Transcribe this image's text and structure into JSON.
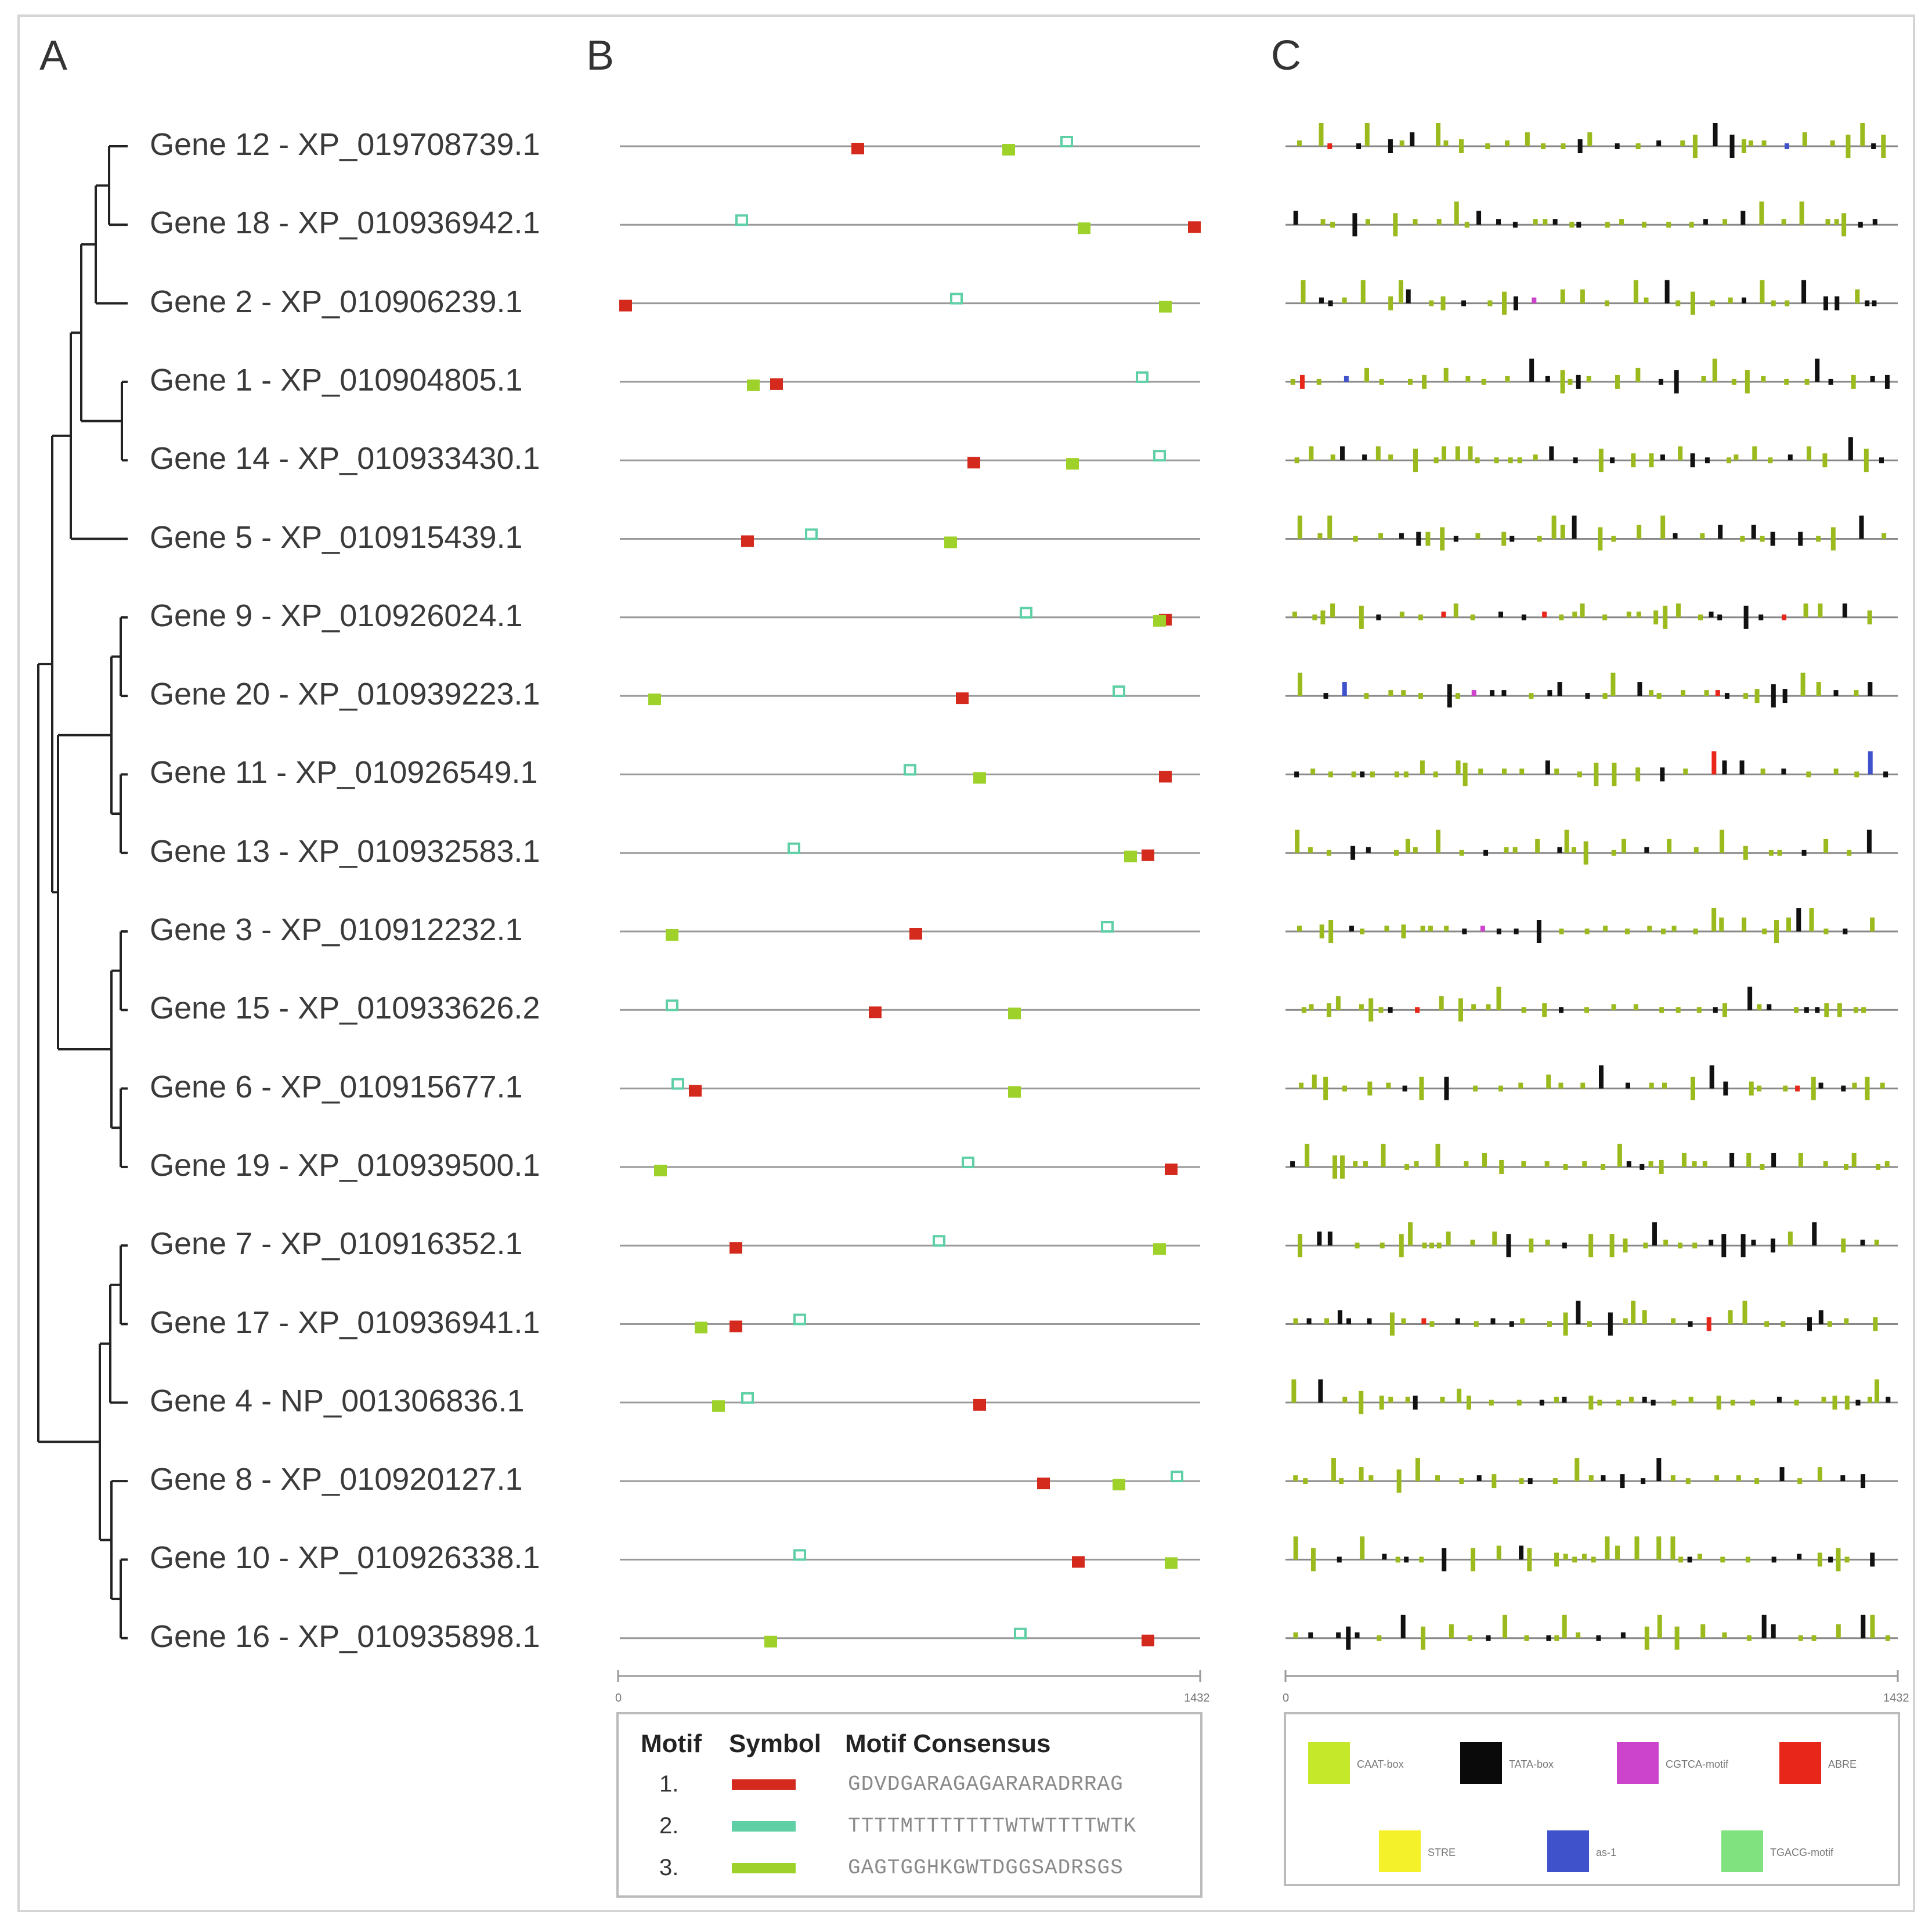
{
  "panels": {
    "a": "A",
    "b": "B",
    "c": "C"
  },
  "genes": [
    {
      "name": "Gene 12 - XP_019708739.1",
      "m1": 0.41,
      "m2": 0.77,
      "m3": 0.67
    },
    {
      "name": "Gene 18 - XP_010936942.1",
      "m1": 0.99,
      "m2": 0.21,
      "m3": 0.8
    },
    {
      "name": "Gene 2 - XP_010906239.1",
      "m1": 0.01,
      "m2": 0.58,
      "m3": 0.94
    },
    {
      "name": "Gene 1 - XP_010904805.1",
      "m1": 0.27,
      "m2": 0.9,
      "m3": 0.23
    },
    {
      "name": "Gene 14 - XP_010933430.1",
      "m1": 0.61,
      "m2": 0.93,
      "m3": 0.78
    },
    {
      "name": "Gene 5 - XP_010915439.1",
      "m1": 0.22,
      "m2": 0.33,
      "m3": 0.57
    },
    {
      "name": "Gene 9 - XP_010926024.1",
      "m1": 0.94,
      "m2": 0.7,
      "m3": 0.93
    },
    {
      "name": "Gene 20 - XP_010939223.1",
      "m1": 0.59,
      "m2": 0.86,
      "m3": 0.06
    },
    {
      "name": "Gene 11 - XP_010926549.1",
      "m1": 0.94,
      "m2": 0.5,
      "m3": 0.62
    },
    {
      "name": "Gene 13 - XP_010932583.1",
      "m1": 0.91,
      "m2": 0.3,
      "m3": 0.88
    },
    {
      "name": "Gene 3 - XP_010912232.1",
      "m1": 0.51,
      "m2": 0.84,
      "m3": 0.09
    },
    {
      "name": "Gene 15 - XP_010933626.2",
      "m1": 0.44,
      "m2": 0.09,
      "m3": 0.68
    },
    {
      "name": "Gene 6 - XP_010915677.1",
      "m1": 0.13,
      "m2": 0.1,
      "m3": 0.68
    },
    {
      "name": "Gene 19 - XP_010939500.1",
      "m1": 0.95,
      "m2": 0.6,
      "m3": 0.07
    },
    {
      "name": "Gene 7 - XP_010916352.1",
      "m1": 0.2,
      "m2": 0.55,
      "m3": 0.93
    },
    {
      "name": "Gene 17 - XP_010936941.1",
      "m1": 0.2,
      "m2": 0.31,
      "m3": 0.14
    },
    {
      "name": "Gene 4 - NP_001306836.1",
      "m1": 0.62,
      "m2": 0.22,
      "m3": 0.17
    },
    {
      "name": "Gene 8 - XP_010920127.1",
      "m1": 0.73,
      "m2": 0.96,
      "m3": 0.86
    },
    {
      "name": "Gene 10 - XP_010926338.1",
      "m1": 0.79,
      "m2": 0.31,
      "m3": 0.95
    },
    {
      "name": "Gene 16 - XP_010935898.1",
      "m1": 0.91,
      "m2": 0.69,
      "m3": 0.26
    }
  ],
  "axis": {
    "b_start": "0",
    "b_end": "1432",
    "c_start": "0",
    "c_end": "1432"
  },
  "motif_legend": {
    "head_motif": "Motif",
    "head_symbol": "Symbol",
    "head_consensus": "Motif Consensus",
    "rows": [
      {
        "num": "1.",
        "color": "#d42a1e",
        "consensus": "GDVDGARAGAGARARADRRAG"
      },
      {
        "num": "2.",
        "color": "#5fcfa6",
        "consensus": "TTTTMTTTTTTTWTWTTTTWTK"
      },
      {
        "num": "3.",
        "color": "#9ed22a",
        "consensus": "GAGTGGHKGWTDGGSADRSGS"
      }
    ]
  },
  "element_legend": [
    {
      "label": "CAAT-box",
      "color": "#c6e82a"
    },
    {
      "label": "TATA-box",
      "color": "#0a0a0a"
    },
    {
      "label": "CGTCA-motif",
      "color": "#cc44cc"
    },
    {
      "label": "ABRE",
      "color": "#e8261a"
    },
    {
      "label": "STRE",
      "color": "#f4f02a"
    },
    {
      "label": "as-1",
      "color": "#3f52cc"
    },
    {
      "label": "TGACG-motif",
      "color": "#7fe27f"
    }
  ],
  "colors": {
    "motif1": "#d42a1e",
    "motif2": "#5fcfa6",
    "motif3": "#9ed22a",
    "caat": "#9aba1e",
    "tata": "#111111",
    "abre": "#e8261a",
    "cgtca": "#cc44cc",
    "as1": "#3f52cc"
  }
}
